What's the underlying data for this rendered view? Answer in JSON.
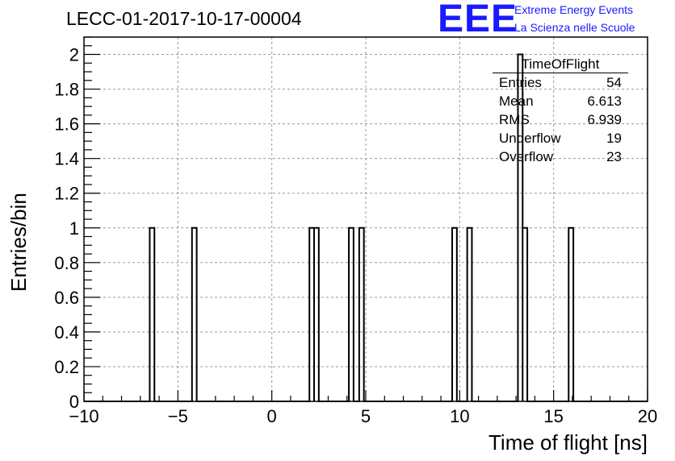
{
  "title": "LECC-01-2017-10-17-00004",
  "logo": {
    "text": "EEE",
    "line1": "Extreme Energy Events",
    "line2": "La Scienza nelle Scuole",
    "color": "#1a1aff"
  },
  "stats": {
    "name": "TimeOfFlight",
    "rows": [
      {
        "key": "Entries",
        "value": "54"
      },
      {
        "key": "Mean",
        "value": "6.613"
      },
      {
        "key": "RMS",
        "value": "6.939"
      },
      {
        "key": "Underflow",
        "value": "19"
      },
      {
        "key": "Overflow",
        "value": "23"
      }
    ]
  },
  "chart_data": {
    "type": "bar",
    "histogram": true,
    "xlabel": "Time of flight [ns]",
    "ylabel": "Entries/bin",
    "xlim": [
      -10,
      20
    ],
    "ylim": [
      0,
      2.1
    ],
    "bin_width": 0.25,
    "x_ticks": [
      -10,
      -5,
      0,
      5,
      10,
      15,
      20
    ],
    "x_tick_labels": [
      "−10",
      "−5",
      "0",
      "5",
      "10",
      "15",
      "20"
    ],
    "y_ticks": [
      0,
      0.2,
      0.4,
      0.6,
      0.8,
      1,
      1.2,
      1.4,
      1.6,
      1.8,
      2
    ],
    "y_tick_labels": [
      "0",
      "0.2",
      "0.4",
      "0.6",
      "0.8",
      "1",
      "1.2",
      "1.4",
      "1.6",
      "1.8",
      "2"
    ],
    "grid": true,
    "legend": "top-right",
    "bins": [
      {
        "x": -6.5,
        "value": 1
      },
      {
        "x": -4.25,
        "value": 1
      },
      {
        "x": 2.0,
        "value": 1
      },
      {
        "x": 2.25,
        "value": 1
      },
      {
        "x": 4.1,
        "value": 1
      },
      {
        "x": 4.65,
        "value": 1
      },
      {
        "x": 9.6,
        "value": 1
      },
      {
        "x": 10.4,
        "value": 1
      },
      {
        "x": 13.1,
        "value": 2
      },
      {
        "x": 13.35,
        "value": 1
      },
      {
        "x": 15.8,
        "value": 1
      }
    ],
    "color": "#000000"
  }
}
